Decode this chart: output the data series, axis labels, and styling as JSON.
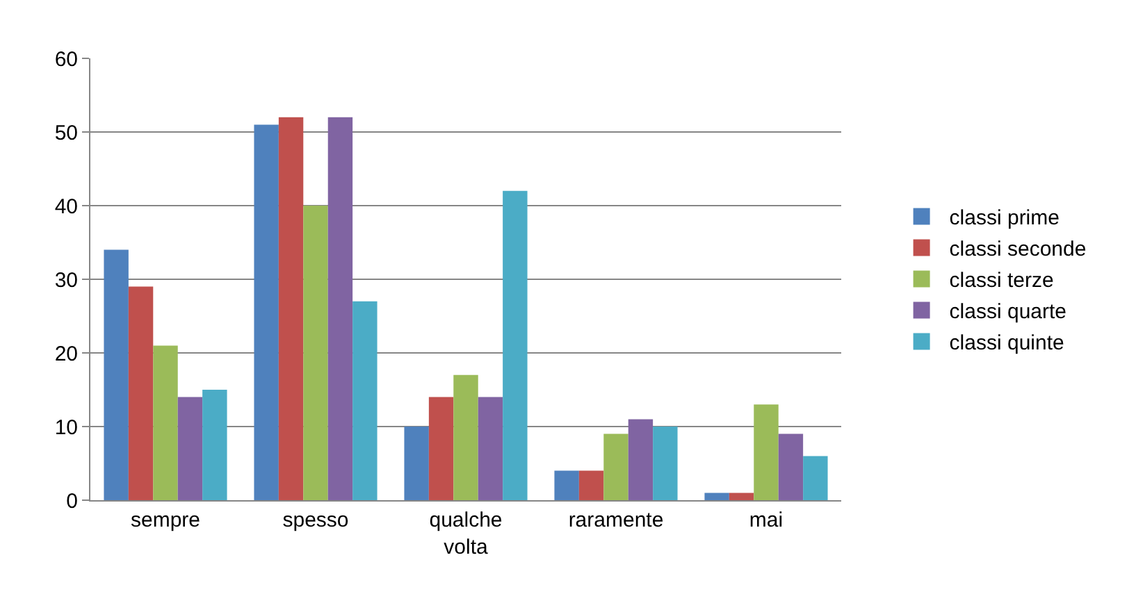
{
  "chart_data": {
    "type": "bar",
    "categories": [
      "sempre",
      "spesso",
      "qualche volta",
      "raramente",
      "mai"
    ],
    "series": [
      {
        "name": "classi prime",
        "color": "#4f81bd",
        "values": [
          34,
          51,
          10,
          4,
          1
        ]
      },
      {
        "name": "classi seconde",
        "color": "#c0504d",
        "values": [
          29,
          52,
          14,
          4,
          1
        ]
      },
      {
        "name": "classi terze",
        "color": "#9bbb59",
        "values": [
          21,
          40,
          17,
          9,
          13
        ]
      },
      {
        "name": "classi quarte",
        "color": "#8064a2",
        "values": [
          14,
          52,
          14,
          11,
          9
        ]
      },
      {
        "name": "classi quinte",
        "color": "#4bacc6",
        "values": [
          15,
          27,
          42,
          10,
          6
        ]
      }
    ],
    "ylim": [
      0,
      60
    ],
    "yticks": [
      0,
      10,
      20,
      30,
      40,
      50,
      60
    ],
    "grid": "y",
    "legend": "right"
  }
}
